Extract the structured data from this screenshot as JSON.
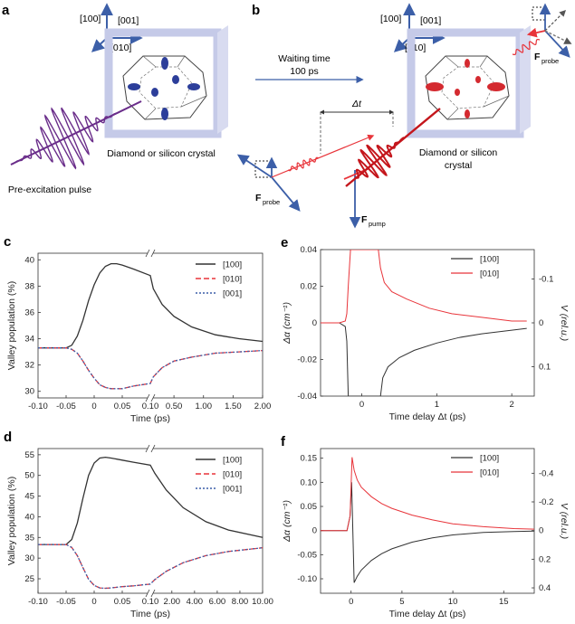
{
  "panels": {
    "a": {
      "label": "a",
      "dirs": [
        "[100]",
        "[001]",
        "[010]"
      ],
      "crystal": "Diamond or silicon crystal",
      "pulse": "Pre-excitation pulse"
    },
    "b": {
      "label": "b",
      "dirs": [
        "[100]",
        "[001]",
        "[010]"
      ],
      "waiting_label": "Waiting time",
      "waiting_value": "100 ps",
      "delay_label": "Δt",
      "crystal": "Diamond or silicon crystal",
      "fprobe": "F",
      "fprobe_sub": "probe",
      "fpump": "F",
      "fpump_sub": "pump"
    }
  },
  "colors": {
    "black": "#333333",
    "red": "#e8343a",
    "blue": "#3c5fa8",
    "purple": "#6a2d8a",
    "frame": "#c5cae8"
  },
  "chart_data": [
    {
      "id": "c",
      "label": "c",
      "type": "line",
      "title": "",
      "xlabel": "Time (ps)",
      "ylabel": "Valley population (%)",
      "xticks": [
        "-0.10",
        "-0.05",
        "0",
        "0.05",
        "0.10",
        "0.50",
        "1.00",
        "1.50",
        "2.00"
      ],
      "ylim": [
        29.5,
        40.5
      ],
      "yticks": [
        "30",
        "32",
        "34",
        "36",
        "38",
        "40"
      ],
      "legend": [
        "[100]",
        "[010]",
        "[001]"
      ],
      "x_segments": "-0.10 to 0.10 linear, break, 0.10 to 2.00 linear",
      "series": [
        {
          "name": "[100]",
          "x": [
            -0.1,
            -0.05,
            -0.04,
            -0.03,
            -0.02,
            -0.01,
            0,
            0.01,
            0.02,
            0.03,
            0.04,
            0.05,
            0.07,
            0.1,
            0.15,
            0.3,
            0.5,
            0.8,
            1.2,
            1.6,
            2.0
          ],
          "values": [
            33.3,
            33.3,
            33.5,
            34.2,
            35.4,
            36.9,
            38.1,
            39.0,
            39.5,
            39.7,
            39.7,
            39.6,
            39.3,
            38.8,
            37.8,
            36.6,
            35.7,
            34.9,
            34.3,
            34.0,
            33.8
          ]
        },
        {
          "name": "[010]",
          "x": [
            -0.1,
            -0.05,
            -0.04,
            -0.03,
            -0.02,
            -0.01,
            0,
            0.01,
            0.02,
            0.03,
            0.04,
            0.05,
            0.07,
            0.1,
            0.15,
            0.3,
            0.5,
            0.8,
            1.2,
            1.6,
            2.0
          ],
          "values": [
            33.3,
            33.3,
            33.2,
            32.9,
            32.3,
            31.6,
            31.0,
            30.5,
            30.3,
            30.2,
            30.2,
            30.2,
            30.4,
            30.6,
            31.1,
            31.8,
            32.3,
            32.6,
            32.9,
            33.0,
            33.1
          ]
        },
        {
          "name": "[001]",
          "x": [
            -0.1,
            -0.05,
            -0.04,
            -0.03,
            -0.02,
            -0.01,
            0,
            0.01,
            0.02,
            0.03,
            0.04,
            0.05,
            0.07,
            0.1,
            0.15,
            0.3,
            0.5,
            0.8,
            1.2,
            1.6,
            2.0
          ],
          "values": [
            33.3,
            33.3,
            33.2,
            32.9,
            32.3,
            31.6,
            31.0,
            30.5,
            30.3,
            30.2,
            30.2,
            30.2,
            30.4,
            30.6,
            31.1,
            31.8,
            32.3,
            32.6,
            32.9,
            33.0,
            33.1
          ]
        }
      ]
    },
    {
      "id": "d",
      "label": "d",
      "type": "line",
      "title": "",
      "xlabel": "Time (ps)",
      "ylabel": "Valley population (%)",
      "xticks": [
        "-0.10",
        "-0.05",
        "0",
        "0.05",
        "0.10",
        "2.00",
        "4.00",
        "6.00",
        "8.00",
        "10.00"
      ],
      "ylim": [
        21.5,
        56.5
      ],
      "yticks": [
        "25",
        "30",
        "35",
        "40",
        "45",
        "50",
        "55"
      ],
      "legend": [
        "[100]",
        "[010]",
        "[001]"
      ],
      "x_segments": "-0.10 to 0.10 linear, break, 0.10 to 10.00 linear",
      "series": [
        {
          "name": "[100]",
          "x": [
            -0.1,
            -0.05,
            -0.04,
            -0.03,
            -0.02,
            -0.01,
            0,
            0.01,
            0.02,
            0.03,
            0.05,
            0.07,
            0.1,
            0.5,
            1.5,
            3,
            5,
            7,
            10
          ],
          "values": [
            33.3,
            33.3,
            34.5,
            38.5,
            44.5,
            50.0,
            53.0,
            54.2,
            54.4,
            54.2,
            53.7,
            53.2,
            52.5,
            50.5,
            46.5,
            42.2,
            38.8,
            36.8,
            35.0
          ]
        },
        {
          "name": "[010]",
          "x": [
            -0.1,
            -0.05,
            -0.04,
            -0.03,
            -0.02,
            -0.01,
            0,
            0.01,
            0.02,
            0.03,
            0.05,
            0.07,
            0.1,
            0.5,
            1.5,
            3,
            5,
            7,
            10
          ],
          "values": [
            33.3,
            33.3,
            32.6,
            30.6,
            27.7,
            24.9,
            23.4,
            22.8,
            22.7,
            22.8,
            23.1,
            23.3,
            23.7,
            24.8,
            26.8,
            28.9,
            30.6,
            31.6,
            32.5
          ]
        },
        {
          "name": "[001]",
          "x": [
            -0.1,
            -0.05,
            -0.04,
            -0.03,
            -0.02,
            -0.01,
            0,
            0.01,
            0.02,
            0.03,
            0.05,
            0.07,
            0.1,
            0.5,
            1.5,
            3,
            5,
            7,
            10
          ],
          "values": [
            33.3,
            33.3,
            32.6,
            30.6,
            27.7,
            24.9,
            23.4,
            22.8,
            22.7,
            22.8,
            23.1,
            23.3,
            23.7,
            24.8,
            26.8,
            28.9,
            30.6,
            31.6,
            32.5
          ]
        }
      ]
    },
    {
      "id": "e",
      "label": "e",
      "type": "line",
      "title": "",
      "xlabel": "Time delay Δt (ps)",
      "ylabel": "Δα (cm⁻¹)",
      "ylabel_right": "V (rel.u.)",
      "xlim": [
        -0.55,
        2.3
      ],
      "ylim": [
        -0.04,
        0.04
      ],
      "xticks": [
        "0",
        "1",
        "2"
      ],
      "yticks": [
        "0.04",
        "0.02",
        "0",
        "-0.02",
        "-0.04"
      ],
      "yticks_right": [
        "-0.1",
        "0",
        "0.1"
      ],
      "legend": [
        "[100]",
        "[010]"
      ],
      "series": [
        {
          "name": "[100]",
          "x": [
            -0.55,
            -0.3,
            -0.22,
            -0.2,
            -0.18,
            0.25,
            0.28,
            0.35,
            0.5,
            0.7,
            1.0,
            1.3,
            1.6,
            2.0,
            2.2
          ],
          "values": [
            0.0,
            0.0,
            -0.002,
            -0.01,
            -0.04,
            -0.04,
            -0.03,
            -0.024,
            -0.019,
            -0.015,
            -0.011,
            -0.008,
            -0.006,
            -0.004,
            -0.003
          ]
        },
        {
          "name": "[010]",
          "x": [
            -0.55,
            -0.3,
            -0.22,
            -0.2,
            -0.18,
            -0.15,
            0.22,
            0.25,
            0.3,
            0.4,
            0.6,
            0.9,
            1.2,
            1.6,
            2.0,
            2.2
          ],
          "values": [
            0.0,
            0.0,
            0.001,
            0.005,
            0.02,
            0.04,
            0.04,
            0.03,
            0.022,
            0.017,
            0.013,
            0.008,
            0.005,
            0.003,
            0.001,
            0.001
          ]
        }
      ]
    },
    {
      "id": "f",
      "label": "f",
      "type": "line",
      "title": "",
      "xlabel": "Time delay Δt (ps)",
      "ylabel": "Δα (cm⁻¹)",
      "ylabel_right": "V (rel.u.)",
      "xlim": [
        -3,
        18
      ],
      "ylim": [
        -0.13,
        0.17
      ],
      "xticks": [
        "0",
        "5",
        "10",
        "15"
      ],
      "yticks": [
        "0.15",
        "0.10",
        "0.05",
        "0",
        "-0.05",
        "-0.10"
      ],
      "yticks_right": [
        "-0.4",
        "-0.2",
        "0",
        "0.2",
        "0.4"
      ],
      "legend": [
        "[100]",
        "[010]"
      ],
      "series": [
        {
          "name": "[100]",
          "x": [
            -3,
            -1,
            -0.4,
            -0.1,
            0.05,
            0.3,
            0.6,
            1,
            2,
            3,
            4,
            6,
            8,
            10,
            13,
            16,
            18
          ],
          "values": [
            0.0,
            0.0,
            0.0,
            0.03,
            0.1,
            -0.108,
            -0.095,
            -0.082,
            -0.062,
            -0.048,
            -0.038,
            -0.024,
            -0.015,
            -0.009,
            -0.004,
            -0.002,
            -0.001
          ]
        },
        {
          "name": "[010]",
          "x": [
            -3,
            -1,
            -0.4,
            -0.1,
            0.1,
            0.3,
            0.6,
            1,
            2,
            3,
            4,
            6,
            8,
            10,
            13,
            16,
            18
          ],
          "values": [
            0.0,
            0.0,
            0.0,
            0.03,
            0.152,
            0.125,
            0.105,
            0.09,
            0.07,
            0.056,
            0.046,
            0.032,
            0.022,
            0.014,
            0.008,
            0.004,
            0.003
          ]
        }
      ]
    }
  ]
}
